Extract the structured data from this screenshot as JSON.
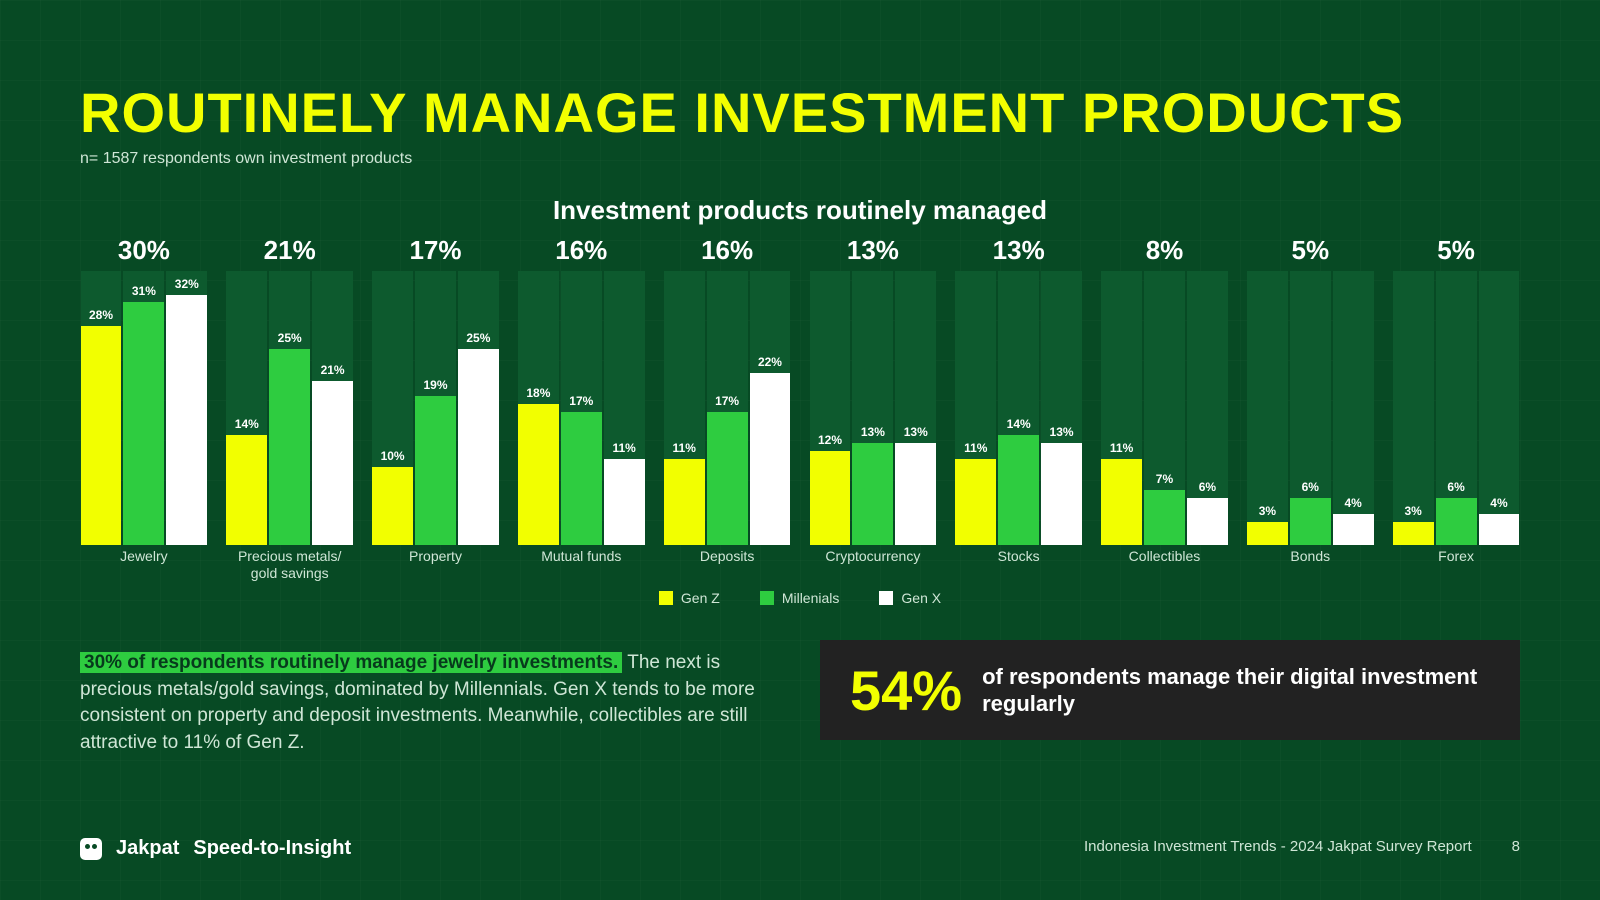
{
  "title": "ROUTINELY MANAGE INVESTMENT PRODUCTS",
  "subtitle": "n= 1587 respondents own investment products",
  "chart": {
    "type": "grouped-bar",
    "title": "Investment products routinely managed",
    "y_max": 35,
    "background_color": "#074a24",
    "bar_bg_color": "#0d5a2e",
    "series": [
      {
        "name": "Gen Z",
        "color": "#f2ff00"
      },
      {
        "name": "Millenials",
        "color": "#2ecc40"
      },
      {
        "name": "Gen X",
        "color": "#ffffff"
      }
    ],
    "groups": [
      {
        "label": "Jewelry",
        "header": "30%",
        "values": [
          28,
          31,
          32
        ]
      },
      {
        "label": "Precious metals/\ngold savings",
        "header": "21%",
        "values": [
          14,
          25,
          21
        ]
      },
      {
        "label": "Property",
        "header": "17%",
        "values": [
          10,
          19,
          25
        ]
      },
      {
        "label": "Mutual funds",
        "header": "16%",
        "values": [
          18,
          17,
          11
        ]
      },
      {
        "label": "Deposits",
        "header": "16%",
        "values": [
          11,
          17,
          22
        ]
      },
      {
        "label": "Cryptocurrency",
        "header": "13%",
        "values": [
          12,
          13,
          13
        ]
      },
      {
        "label": "Stocks",
        "header": "13%",
        "values": [
          11,
          14,
          13
        ]
      },
      {
        "label": "Collectibles",
        "header": "8%",
        "values": [
          11,
          7,
          6
        ]
      },
      {
        "label": "Bonds",
        "header": "5%",
        "values": [
          3,
          6,
          4
        ]
      },
      {
        "label": "Forex",
        "header": "5%",
        "values": [
          3,
          6,
          4
        ]
      }
    ]
  },
  "body": {
    "highlight": "30% of respondents routinely manage jewelry investments.",
    "rest": " The next is precious metals/gold savings, dominated by Millennials. Gen X tends to be more consistent on property and deposit investments. Meanwhile, collectibles are still attractive to 11% of Gen Z."
  },
  "callout": {
    "number": "54%",
    "text": "of respondents manage their digital investment regularly",
    "bg_color": "#222222",
    "number_color": "#f2ff00"
  },
  "footer": {
    "brand": "Jakpat",
    "tagline": "Speed-to-Insight",
    "report": "Indonesia Investment Trends - 2024 Jakpat Survey Report",
    "page": "8"
  }
}
